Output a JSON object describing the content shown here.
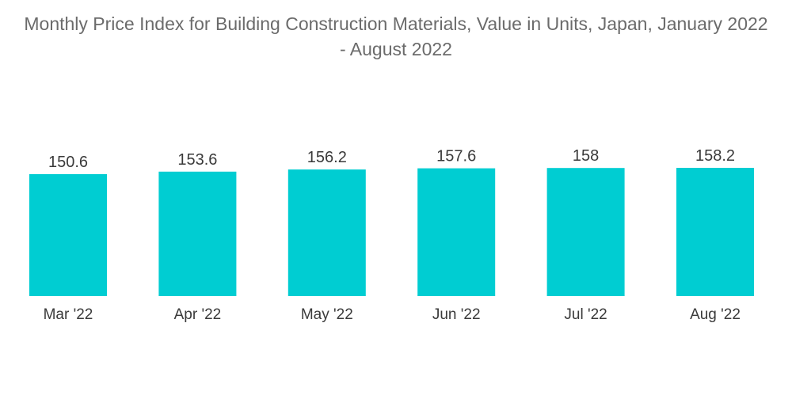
{
  "chart_data": {
    "type": "bar",
    "title_lines": [
      "Monthly Price Index for Building Construction Materials, Value in Units, Japan, January 2022",
      "- August 2022"
    ],
    "title": "Monthly Price Index for Building Construction Materials, Value in Units, Japan, January 2022 - August 2022",
    "categories": [
      "Mar '22",
      "Apr '22",
      "May '22",
      "Jun '22",
      "Jul '22",
      "Aug '22"
    ],
    "values": [
      150.6,
      153.6,
      156.2,
      157.6,
      158,
      158.2
    ],
    "data_labels": [
      "150.6",
      "153.6",
      "156.2",
      "157.6",
      "158",
      "158.2"
    ],
    "xlabel": "",
    "ylabel": "",
    "ylim": [
      0,
      158.2
    ],
    "grid": false,
    "legend": "none",
    "bar_color": "#00cdd2"
  }
}
